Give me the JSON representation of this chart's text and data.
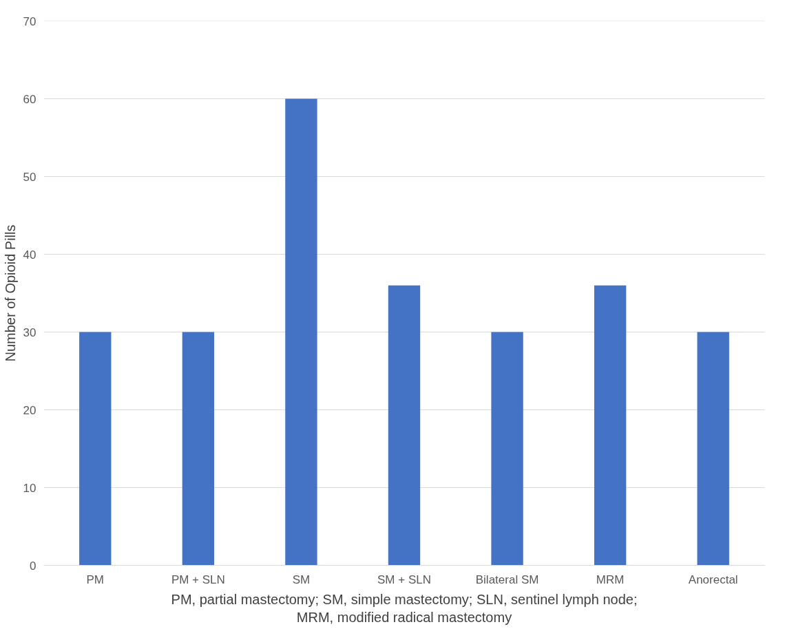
{
  "chart_data": {
    "type": "bar",
    "xlabel": "PM, partial mastectomy; SM, simple mastectomy; SLN, sentinel lymph node;\nMRM, modified radical mastectomy",
    "ylabel": "Number of Opioid Pills",
    "categories": [
      "PM",
      "PM + SLN",
      "SM",
      "SM + SLN",
      "Bilateral SM",
      "MRM",
      "Anorectal"
    ],
    "values": [
      30,
      30,
      60,
      36,
      30,
      36,
      30
    ],
    "color": "#4472c4",
    "ylim": [
      0,
      70
    ],
    "yticks": [
      0,
      10,
      20,
      30,
      40,
      50,
      60,
      70
    ],
    "grid": "y"
  }
}
